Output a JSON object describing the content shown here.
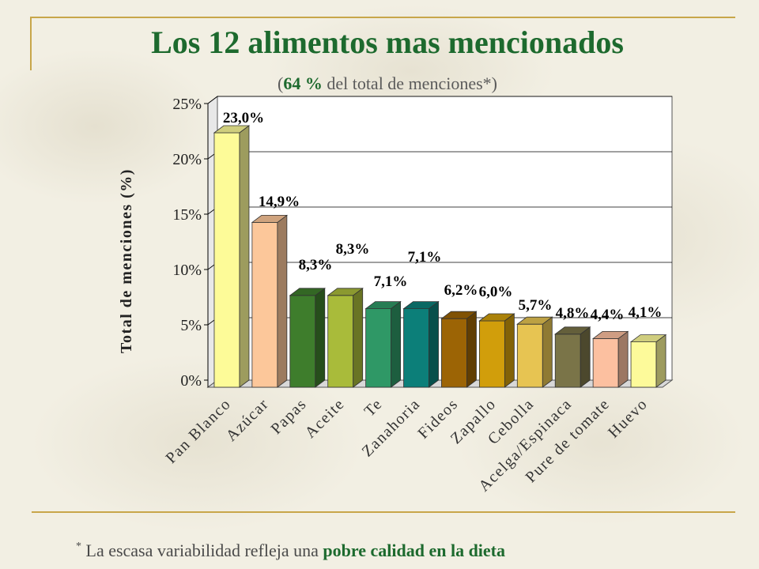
{
  "slide": {
    "title": "Los 12 alimentos mas mencionados",
    "subtitle_open": "(",
    "subtitle_bold": "64 %",
    "subtitle_rest": " del total de menciones*)",
    "footer_asterisk": "*",
    "footer_text": " La escasa variabilidad refleja una ",
    "footer_bold": "pobre calidad en la dieta"
  },
  "colors": {
    "title": "#1d6a2e",
    "frame": "#c8a64a"
  },
  "chart_data": {
    "type": "bar",
    "ylabel": "Total de menciones (%)",
    "xlabel": "",
    "ylim": [
      0,
      25
    ],
    "yticks": [
      0,
      5,
      10,
      15,
      20,
      25
    ],
    "ytick_labels": [
      "0%",
      "5%",
      "10%",
      "15%",
      "20%",
      "25%"
    ],
    "grid": true,
    "categories": [
      "Pan Blanco",
      "Azúcar",
      "Papas",
      "Aceite",
      "Te",
      "Zanahoria",
      "Fideos",
      "Zapallo",
      "Cebolla",
      "Acelga/Espinaca",
      "Pure de tomate",
      "Huevo"
    ],
    "values": [
      23.0,
      14.9,
      8.3,
      8.3,
      7.1,
      7.1,
      6.2,
      6.0,
      5.7,
      4.8,
      4.4,
      4.1
    ],
    "data_labels": [
      "23,0%",
      "14,9%",
      "8,3%",
      "8,3%",
      "7,1%",
      "7,1%",
      "6,2%",
      "6,0%",
      "5,7%",
      "4,8%",
      "4,4%",
      "4,1%"
    ],
    "bar_colors": [
      "#fdfb98",
      "#fcc79a",
      "#3e7d2c",
      "#a9bb3a",
      "#2f9866",
      "#0c7f79",
      "#9c6405",
      "#d19e0b",
      "#e7c452",
      "#7a7448",
      "#fcc0a0",
      "#fdfa9a"
    ]
  }
}
